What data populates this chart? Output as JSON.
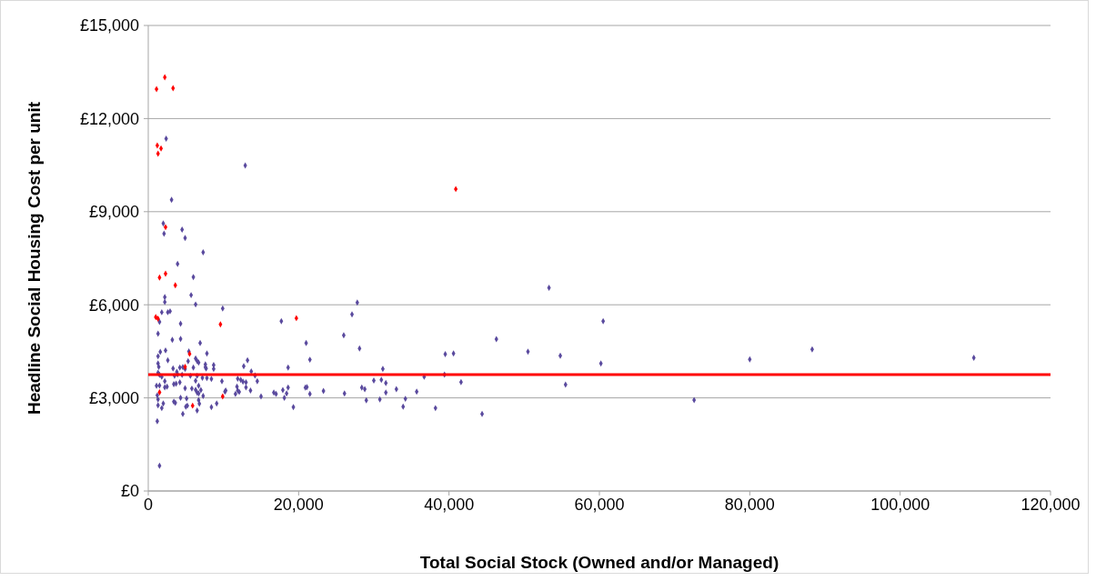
{
  "chart_data": {
    "type": "scatter",
    "xlabel": "Total Social Stock (Owned and/or Managed)",
    "ylabel": "Headline Social Housing Cost per unit",
    "xlim": [
      0,
      120000
    ],
    "ylim": [
      0,
      15000
    ],
    "xticks": [
      {
        "value": 0,
        "label": "0"
      },
      {
        "value": 20000,
        "label": "20,000"
      },
      {
        "value": 40000,
        "label": "40,000"
      },
      {
        "value": 60000,
        "label": "60,000"
      },
      {
        "value": 80000,
        "label": "80,000"
      },
      {
        "value": 100000,
        "label": "100,000"
      },
      {
        "value": 120000,
        "label": "120,000"
      }
    ],
    "yticks": [
      {
        "value": 0,
        "label": "£0"
      },
      {
        "value": 3000,
        "label": "£3,000"
      },
      {
        "value": 6000,
        "label": "£6,000"
      },
      {
        "value": 9000,
        "label": "£9,000"
      },
      {
        "value": 12000,
        "label": "£12,000"
      },
      {
        "value": 15000,
        "label": "£15,000"
      }
    ],
    "grid": "y",
    "marker": "diamond",
    "ref_lines": [
      {
        "axis": "y",
        "value": 3750,
        "color": "#ff0000"
      }
    ],
    "series": [
      {
        "color": "#5a4a9e",
        "x": [
          2380,
          12900,
          3100,
          2000,
          2100,
          4500,
          4900,
          7300,
          3900,
          6000,
          2200,
          2200,
          5700,
          6300,
          1800,
          2600,
          2900,
          9900,
          1500,
          4300,
          1300,
          3200,
          4300,
          6900,
          2300,
          1600,
          1300,
          5400,
          7800,
          2600,
          1300,
          1400,
          6300,
          6500,
          6700,
          5300,
          7600,
          7600,
          8700,
          8700,
          4200,
          4600,
          3300,
          4900,
          6000,
          3800,
          3900,
          1300,
          1500,
          7700,
          7800,
          12700,
          13200,
          13700,
          1800,
          3500,
          4500,
          5600,
          6500,
          7200,
          8400,
          11900,
          2200,
          6300,
          9800,
          12300,
          12600,
          3400,
          3700,
          4200,
          13000,
          1100,
          1500,
          11800,
          4900,
          5800,
          2200,
          2500,
          6700,
          13000,
          13600,
          6300,
          6500,
          7000,
          6700,
          11900,
          12100,
          7300,
          1200,
          1300,
          11600,
          10200,
          10300,
          2000,
          1300,
          1800,
          3400,
          3600,
          4300,
          5100,
          5000,
          5200,
          6700,
          6800,
          6500,
          8400,
          9100,
          4600,
          1200,
          1500,
          17700,
          21000,
          21500,
          18600,
          14500,
          14200,
          15000,
          16700,
          17000,
          17900,
          18600,
          18400,
          18100,
          19300,
          20900,
          21100,
          21500,
          23300,
          26000,
          26100,
          27100,
          27800,
          28100,
          28400,
          28800,
          29000,
          30000,
          31000,
          31200,
          31600,
          31600,
          30800,
          33000,
          34200,
          33900,
          35700,
          36700,
          38200,
          39400,
          39500,
          40600,
          41600,
          44400,
          46300,
          53300,
          50500,
          54800,
          55500,
          60500,
          60200,
          72600,
          80000,
          88300,
          109800
        ],
        "values": [
          11350,
          10490,
          9380,
          8620,
          8290,
          8420,
          8150,
          7690,
          7320,
          6890,
          6250,
          6090,
          6310,
          6010,
          5760,
          5760,
          5790,
          5880,
          5450,
          5390,
          5070,
          4870,
          4900,
          4770,
          4530,
          4480,
          4340,
          4500,
          4430,
          4210,
          4110,
          4000,
          4270,
          4190,
          4140,
          4180,
          4080,
          3990,
          4060,
          3930,
          3980,
          3990,
          3950,
          3930,
          3980,
          3840,
          3760,
          3810,
          3740,
          3950,
          3640,
          4020,
          4210,
          3850,
          3680,
          3710,
          3740,
          3710,
          3710,
          3650,
          3610,
          3620,
          3540,
          3550,
          3540,
          3580,
          3520,
          3440,
          3460,
          3500,
          3500,
          3390,
          3400,
          3360,
          3310,
          3300,
          3340,
          3360,
          3390,
          3340,
          3240,
          3260,
          3170,
          3250,
          3140,
          3240,
          3190,
          3060,
          3080,
          2950,
          3130,
          3200,
          3240,
          2820,
          2760,
          2670,
          2880,
          2840,
          3000,
          2980,
          2720,
          2750,
          2930,
          2810,
          2590,
          2700,
          2820,
          2480,
          2250,
          810,
          5470,
          4770,
          4230,
          3980,
          3540,
          3720,
          3050,
          3170,
          3130,
          3250,
          3330,
          3140,
          3000,
          2700,
          3330,
          3350,
          3130,
          3220,
          5020,
          3140,
          5690,
          6070,
          4590,
          3330,
          3280,
          2920,
          3560,
          3580,
          3930,
          3480,
          3170,
          2950,
          3280,
          2970,
          2720,
          3200,
          3680,
          2670,
          3750,
          4410,
          4430,
          3510,
          2480,
          4890,
          6550,
          4490,
          4360,
          3430,
          5470,
          4110,
          2930,
          4240,
          4560,
          4290
        ]
      },
      {
        "color": "#ff0000",
        "x": [
          1100,
          2200,
          3300,
          1200,
          1700,
          1300,
          40900,
          2300,
          1500,
          2300,
          3600,
          1000,
          1300,
          9600,
          19700,
          5500,
          4900,
          1500,
          9900,
          5900
        ],
        "values": [
          12950,
          13330,
          12980,
          11130,
          11040,
          10870,
          9730,
          8500,
          6880,
          7000,
          6630,
          5600,
          5550,
          5370,
          5570,
          4420,
          4000,
          3180,
          3050,
          2750
        ]
      }
    ]
  }
}
